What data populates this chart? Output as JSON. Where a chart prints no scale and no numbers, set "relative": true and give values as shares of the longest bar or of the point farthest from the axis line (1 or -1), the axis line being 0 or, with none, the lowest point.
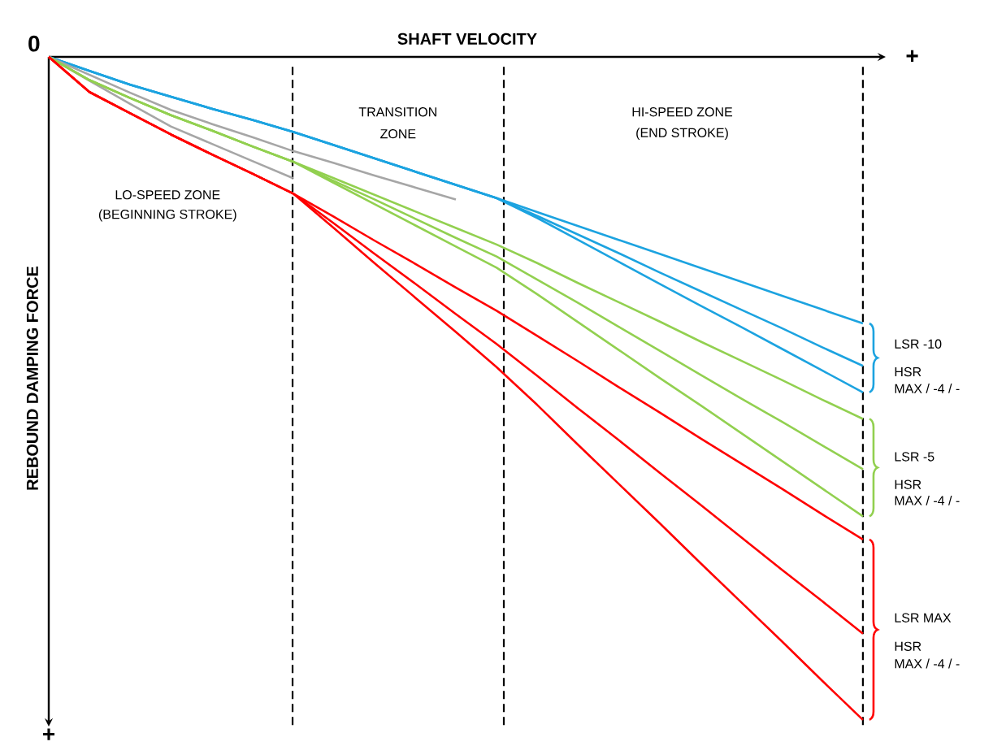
{
  "chart_data": {
    "type": "line",
    "relative": true,
    "xlabel": "SHAFT VELOCITY",
    "ylabel": "REBOUND DAMPING FORCE",
    "categories": [
      null,
      null,
      null,
      null,
      null,
      null,
      null,
      null,
      null,
      null,
      null,
      null,
      null,
      null,
      null,
      null,
      null,
      null,
      null,
      null,
      null
    ],
    "series": [
      {
        "color": "#1ca3e0",
        "values": [
          0,
          -0.021,
          -0.042,
          -0.06,
          -0.078,
          -0.095,
          -0.113,
          -0.133,
          -0.153,
          -0.173,
          -0.193,
          -0.213,
          -0.234,
          -0.255,
          -0.276,
          -0.297,
          -0.318,
          -0.339,
          -0.36,
          -0.381,
          -0.402
        ]
      },
      {
        "color": "#1ca3e0",
        "values": [
          0,
          -0.021,
          -0.042,
          -0.06,
          -0.078,
          -0.095,
          -0.113,
          -0.133,
          -0.153,
          -0.173,
          -0.193,
          -0.213,
          -0.24,
          -0.268,
          -0.296,
          -0.325,
          -0.353,
          -0.381,
          -0.409,
          -0.438,
          -0.466
        ]
      },
      {
        "color": "#1ca3e0",
        "values": [
          0,
          -0.021,
          -0.042,
          -0.06,
          -0.078,
          -0.095,
          -0.113,
          -0.133,
          -0.153,
          -0.173,
          -0.193,
          -0.213,
          -0.243,
          -0.276,
          -0.309,
          -0.342,
          -0.375,
          -0.407,
          -0.44,
          -0.473,
          -0.506
        ]
      },
      {
        "color": "#a6a6a6",
        "values": [
          0,
          -0.027,
          -0.054,
          -0.08,
          -0.101,
          -0.121,
          -0.142,
          -0.16,
          -0.179,
          -0.197,
          -0.215,
          null,
          null,
          null,
          null,
          null,
          null,
          null,
          null,
          null,
          null
        ]
      },
      {
        "color": "#a6a6a6",
        "values": [
          0,
          -0.036,
          -0.071,
          -0.105,
          -0.131,
          -0.157,
          -0.183,
          null,
          null,
          null,
          null,
          null,
          null,
          null,
          null,
          null,
          null,
          null,
          null,
          null,
          null
        ]
      },
      {
        "color": "#92d050",
        "values": [
          0,
          -0.035,
          -0.062,
          -0.088,
          -0.111,
          -0.135,
          -0.158,
          -0.183,
          -0.208,
          -0.233,
          -0.258,
          -0.283,
          -0.311,
          -0.341,
          -0.37,
          -0.399,
          -0.429,
          -0.458,
          -0.487,
          -0.517,
          -0.546
        ]
      },
      {
        "color": "#92d050",
        "values": [
          0,
          -0.035,
          -0.062,
          -0.088,
          -0.111,
          -0.135,
          -0.158,
          -0.187,
          -0.215,
          -0.244,
          -0.273,
          -0.301,
          -0.336,
          -0.371,
          -0.407,
          -0.443,
          -0.479,
          -0.515,
          -0.55,
          -0.586,
          -0.622
        ]
      },
      {
        "color": "#92d050",
        "values": [
          0,
          -0.035,
          -0.062,
          -0.088,
          -0.111,
          -0.135,
          -0.158,
          -0.19,
          -0.222,
          -0.254,
          -0.286,
          -0.318,
          -0.358,
          -0.4,
          -0.442,
          -0.484,
          -0.525,
          -0.567,
          -0.609,
          -0.651,
          -0.693
        ]
      },
      {
        "color": "#ff0000",
        "values": [
          0,
          -0.053,
          -0.085,
          -0.117,
          -0.147,
          -0.176,
          -0.206,
          -0.241,
          -0.277,
          -0.312,
          -0.348,
          -0.383,
          -0.421,
          -0.459,
          -0.498,
          -0.536,
          -0.575,
          -0.613,
          -0.651,
          -0.69,
          -0.728
        ]
      },
      {
        "color": "#ff0000",
        "values": [
          0,
          -0.053,
          -0.085,
          -0.117,
          -0.147,
          -0.176,
          -0.206,
          -0.251,
          -0.297,
          -0.342,
          -0.388,
          -0.433,
          -0.481,
          -0.53,
          -0.578,
          -0.627,
          -0.675,
          -0.724,
          -0.773,
          -0.821,
          -0.87
        ]
      },
      {
        "color": "#ff0000",
        "values": [
          0,
          -0.053,
          -0.085,
          -0.117,
          -0.147,
          -0.176,
          -0.206,
          -0.258,
          -0.311,
          -0.363,
          -0.415,
          -0.468,
          -0.525,
          -0.585,
          -0.644,
          -0.703,
          -0.763,
          -0.822,
          -0.881,
          -0.941,
          -1
        ]
      }
    ],
    "annotations": [
      "0",
      "+",
      "+",
      "LO-SPEED ZONE",
      "(BEGINNING STROKE)",
      "TRANSITION",
      "ZONE",
      "HI-SPEED ZONE",
      "(END STROKE)",
      "LSR -10",
      "HSR",
      "MAX / -4 / -",
      "LSR -5",
      "HSR",
      "MAX / -4 / -",
      "LSR MAX",
      "HSR",
      "MAX / -4 / -"
    ]
  }
}
